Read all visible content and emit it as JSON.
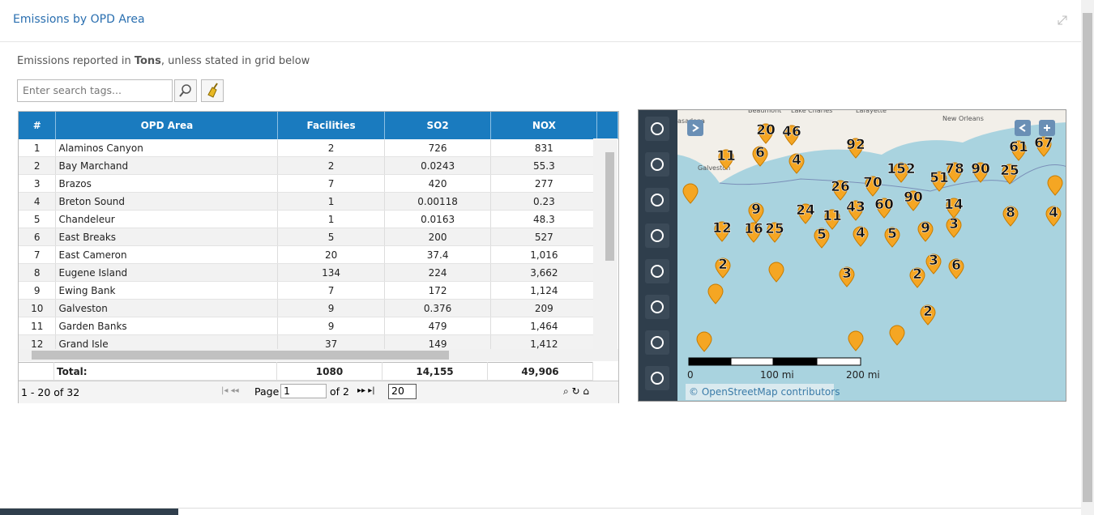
{
  "header": {
    "title": "Emissions by OPD Area"
  },
  "note": {
    "prefix": "Emissions reported in ",
    "unit": "Tons",
    "suffix": ", unless stated in grid below"
  },
  "search": {
    "placeholder": "Enter search tags..."
  },
  "table": {
    "columns": [
      "#",
      "OPD Area",
      "Facilities",
      "SO2",
      "NOX"
    ],
    "rows": [
      [
        "1",
        "Alaminos Canyon",
        "2",
        "726",
        "831"
      ],
      [
        "2",
        "Bay Marchand",
        "2",
        "0.0243",
        "55.3"
      ],
      [
        "3",
        "Brazos",
        "7",
        "420",
        "277"
      ],
      [
        "4",
        "Breton Sound",
        "1",
        "0.00118",
        "0.23"
      ],
      [
        "5",
        "Chandeleur",
        "1",
        "0.0163",
        "48.3"
      ],
      [
        "6",
        "East Breaks",
        "5",
        "200",
        "527"
      ],
      [
        "7",
        "East Cameron",
        "20",
        "37.4",
        "1,016"
      ],
      [
        "8",
        "Eugene Island",
        "134",
        "224",
        "3,662"
      ],
      [
        "9",
        "Ewing Bank",
        "7",
        "172",
        "1,124"
      ],
      [
        "10",
        "Galveston",
        "9",
        "0.376",
        "209"
      ],
      [
        "11",
        "Garden Banks",
        "9",
        "479",
        "1,464"
      ],
      [
        "12",
        "Grand Isle",
        "37",
        "149",
        "1,412"
      ]
    ],
    "total": [
      "Total:",
      "1080",
      "14,155",
      "49,906"
    ]
  },
  "pager": {
    "range": "1 - 20 of 32",
    "page_label": "Page",
    "page": "1",
    "of": "of 2",
    "size": "20"
  },
  "map": {
    "places": [
      "Beaumont",
      "Lake Charles",
      "Lafayette",
      "New Orleans",
      "asadena",
      "Galveston"
    ],
    "clusters": [
      20,
      46,
      92,
      11,
      6,
      4,
      152,
      51,
      78,
      90,
      25,
      61,
      67,
      26,
      70,
      90,
      14,
      9,
      24,
      11,
      43,
      60,
      8,
      4,
      12,
      16,
      25,
      5,
      4,
      5,
      9,
      3,
      2,
      3,
      3,
      2,
      6,
      2
    ],
    "scale": [
      "0",
      "100 mi",
      "200 mi"
    ],
    "attribution": "© OpenStreetMap contributors"
  }
}
